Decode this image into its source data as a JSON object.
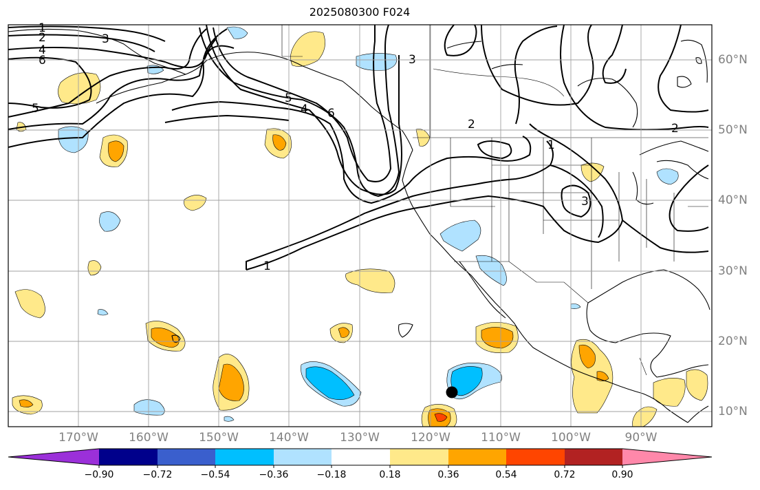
{
  "title": "2025080300 F024",
  "lon_labels": [
    "170°W",
    "160°W",
    "150°W",
    "140°W",
    "130°W",
    "120°W",
    "110°W",
    "100°W",
    "90°W"
  ],
  "lat_labels": [
    "60°N",
    "50°N",
    "40°N",
    "30°N",
    "20°N",
    "10°N"
  ],
  "contour_labels": [
    "1",
    "2",
    "3",
    "4",
    "5",
    "6"
  ],
  "colorbar": {
    "colors": [
      "#9b30d9",
      "#00008b",
      "#3a5fcd",
      "#00bfff",
      "#b0e2ff",
      "#ffffff",
      "#ffe98a",
      "#ffa500",
      "#ff4500",
      "#b22222",
      "#ff88aa"
    ],
    "ticks": [
      "−0.90",
      "−0.72",
      "−0.54",
      "−0.36",
      "−0.18",
      "0.18",
      "0.36",
      "0.54",
      "0.72",
      "0.90"
    ]
  },
  "colors": {
    "grid": "#a0a0a0",
    "contour": "#000000",
    "positive_light": "#ffe98a",
    "positive_mid": "#ffa500",
    "positive_high": "#ff4500",
    "negative_light": "#b0e2ff",
    "negative_mid": "#00bfff"
  }
}
